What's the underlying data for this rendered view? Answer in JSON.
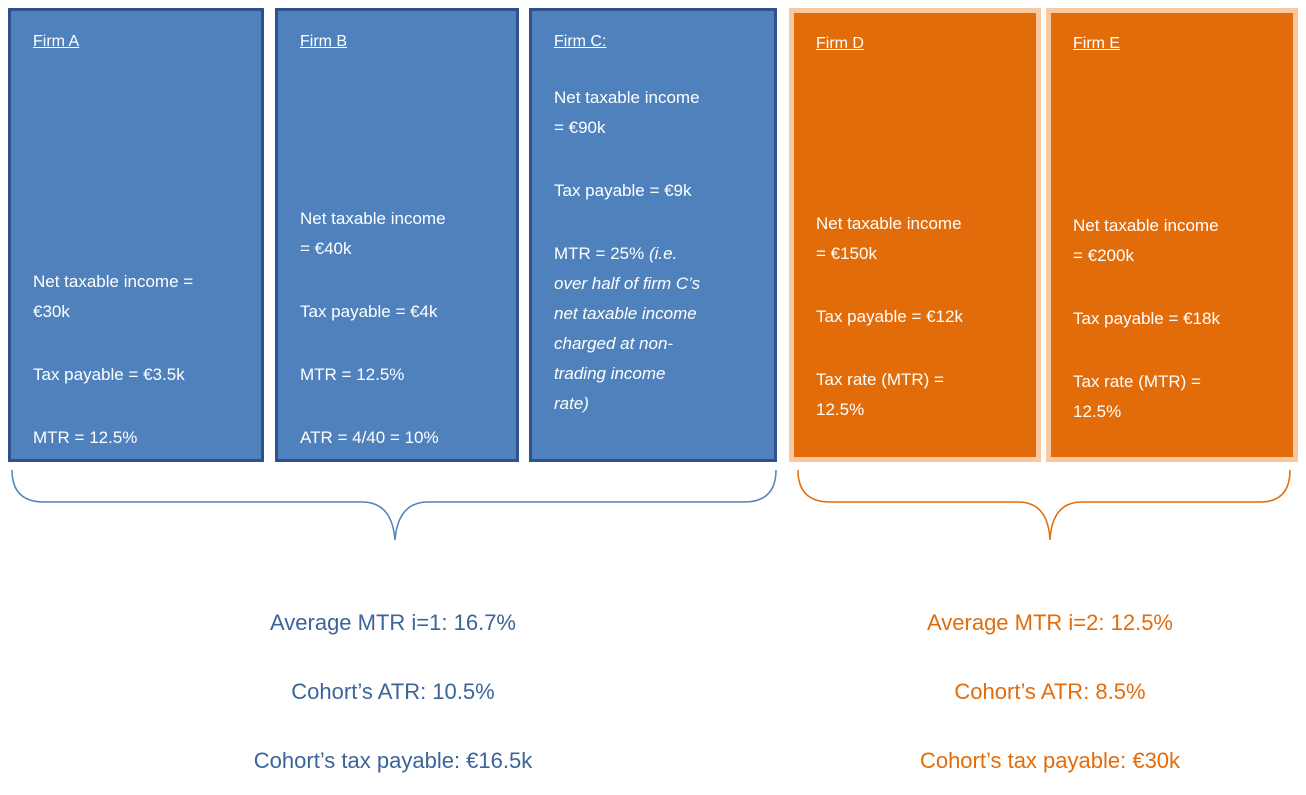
{
  "firms": [
    {
      "title": "Firm A",
      "paragraphs": [
        [
          "Net taxable income =",
          "€30k"
        ],
        [
          "Tax payable = €3.5k"
        ],
        [
          "MTR = 12.5%"
        ]
      ]
    },
    {
      "title": "Firm B",
      "paragraphs": [
        [
          "Net taxable income",
          "= €40k"
        ],
        [
          "Tax payable = €4k"
        ],
        [
          "MTR = 12.5%"
        ],
        [
          "ATR = 4/40 = 10%"
        ]
      ]
    },
    {
      "title": "Firm C:",
      "paragraphs": [
        [
          "Net taxable income",
          "= €90k"
        ],
        [
          "Tax payable = €9k"
        ],
        {
          "text": "MTR = 25%",
          "note": [
            "(i.e.",
            "over half of firm C’s",
            "net taxable income",
            "charged at non-",
            "trading income",
            "rate)"
          ]
        }
      ]
    },
    {
      "title": "Firm D",
      "paragraphs": [
        [
          "Net taxable income",
          "= €150k"
        ],
        [
          "Tax payable = €12k"
        ],
        [
          "Tax rate (MTR) =",
          "12.5%"
        ]
      ]
    },
    {
      "title": "Firm E",
      "paragraphs": [
        [
          "Net taxable income",
          "= €200k"
        ],
        [
          "Tax payable = €18k"
        ],
        [
          "Tax rate (MTR) =",
          "12.5%"
        ]
      ]
    }
  ],
  "cohorts": [
    {
      "lines": [
        "Average MTR i=1: 16.7%",
        "Cohort’s ATR: 10.5%",
        "Cohort’s tax payable: €16.5k"
      ]
    },
    {
      "lines": [
        "Average MTR i=2: 12.5%",
        "Cohort’s ATR: 8.5%",
        "Cohort’s tax payable: €30k"
      ]
    }
  ]
}
